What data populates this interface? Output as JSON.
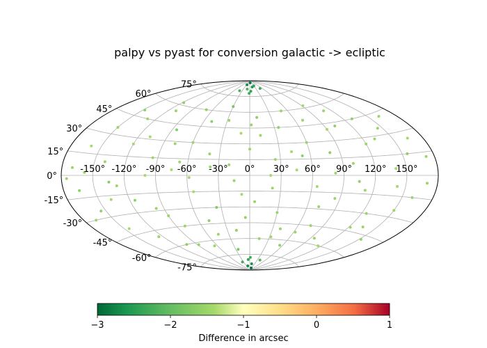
{
  "chart_data": {
    "type": "scatter",
    "projection": "aitoff",
    "title": "palpy vs pyast for conversion galactic -> ecliptic",
    "grid": true,
    "x_ticks": [
      {
        "value": -150,
        "label": "-150°"
      },
      {
        "value": -120,
        "label": "-120°"
      },
      {
        "value": -90,
        "label": "-90°"
      },
      {
        "value": -60,
        "label": "-60°"
      },
      {
        "value": -30,
        "label": "-30°"
      },
      {
        "value": 0,
        "label": "0°"
      },
      {
        "value": 30,
        "label": "30°"
      },
      {
        "value": 60,
        "label": "60°"
      },
      {
        "value": 90,
        "label": "90°"
      },
      {
        "value": 120,
        "label": "120°"
      },
      {
        "value": 150,
        "label": "150°"
      }
    ],
    "y_ticks": [
      {
        "value": 75,
        "label": "75°"
      },
      {
        "value": 60,
        "label": "60°"
      },
      {
        "value": 45,
        "label": "45°"
      },
      {
        "value": 30,
        "label": "30°"
      },
      {
        "value": 15,
        "label": "15°"
      },
      {
        "value": 0,
        "label": "0°"
      },
      {
        "value": -15,
        "label": "-15°"
      },
      {
        "value": -30,
        "label": "-30°"
      },
      {
        "value": -45,
        "label": "-45°"
      },
      {
        "value": -60,
        "label": "-60°"
      },
      {
        "value": -75,
        "label": "-75°"
      }
    ],
    "colorbar": {
      "label": "Difference in arcsec",
      "colormap": "RdYlGn_r",
      "range": [
        -3,
        1
      ],
      "ticks": [
        {
          "value": -3,
          "label": "−3"
        },
        {
          "value": -2,
          "label": "−2"
        },
        {
          "value": -1,
          "label": "−1"
        },
        {
          "value": 0,
          "label": "0"
        },
        {
          "value": 1,
          "label": "1"
        }
      ]
    },
    "points": [
      {
        "lon": -170,
        "lat": 5,
        "v": -1.5
      },
      {
        "lon": -165,
        "lat": -10,
        "v": -1.6
      },
      {
        "lon": -160,
        "lat": 20,
        "v": -1.4
      },
      {
        "lon": -155,
        "lat": -25,
        "v": -1.6
      },
      {
        "lon": -150,
        "lat": 35,
        "v": -1.5
      },
      {
        "lon": -145,
        "lat": -40,
        "v": -1.4
      },
      {
        "lon": -140,
        "lat": 10,
        "v": -1.5
      },
      {
        "lon": -135,
        "lat": -5,
        "v": -1.7
      },
      {
        "lon": -130,
        "lat": 45,
        "v": -1.5
      },
      {
        "lon": -125,
        "lat": -50,
        "v": -1.5
      },
      {
        "lon": -120,
        "lat": 25,
        "v": -1.4
      },
      {
        "lon": -115,
        "lat": -20,
        "v": -1.6
      },
      {
        "lon": -110,
        "lat": 55,
        "v": -1.5
      },
      {
        "lon": -105,
        "lat": -60,
        "v": -1.6
      },
      {
        "lon": -100,
        "lat": 0,
        "v": -1.4
      },
      {
        "lon": -95,
        "lat": 15,
        "v": -1.5
      },
      {
        "lon": -90,
        "lat": -35,
        "v": -1.5
      },
      {
        "lon": -85,
        "lat": 40,
        "v": -1.7
      },
      {
        "lon": -80,
        "lat": -45,
        "v": -1.5
      },
      {
        "lon": -75,
        "lat": 5,
        "v": -1.4
      },
      {
        "lon": -70,
        "lat": 60,
        "v": -1.6
      },
      {
        "lon": -65,
        "lat": -65,
        "v": -1.5
      },
      {
        "lon": -60,
        "lat": 30,
        "v": -1.5
      },
      {
        "lon": -55,
        "lat": -15,
        "v": -1.4
      },
      {
        "lon": -50,
        "lat": 50,
        "v": -1.6
      },
      {
        "lon": -45,
        "lat": -55,
        "v": -1.5
      },
      {
        "lon": -40,
        "lat": 20,
        "v": -1.5
      },
      {
        "lon": -35,
        "lat": -30,
        "v": -1.7
      },
      {
        "lon": -30,
        "lat": 65,
        "v": -1.8
      },
      {
        "lon": -25,
        "lat": -70,
        "v": -1.8
      },
      {
        "lon": -20,
        "lat": 10,
        "v": -1.5
      },
      {
        "lon": -15,
        "lat": -5,
        "v": -1.5
      },
      {
        "lon": -10,
        "lat": 40,
        "v": -1.4
      },
      {
        "lon": -5,
        "lat": -40,
        "v": -1.6
      },
      {
        "lon": 0,
        "lat": 25,
        "v": -1.5
      },
      {
        "lon": 5,
        "lat": -25,
        "v": -1.5
      },
      {
        "lon": 10,
        "lat": 55,
        "v": -1.6
      },
      {
        "lon": 15,
        "lat": -60,
        "v": -1.5
      },
      {
        "lon": 20,
        "lat": 0,
        "v": -1.4
      },
      {
        "lon": 25,
        "lat": 15,
        "v": -1.5
      },
      {
        "lon": 30,
        "lat": -35,
        "v": -1.5
      },
      {
        "lon": 35,
        "lat": 45,
        "v": -1.6
      },
      {
        "lon": 40,
        "lat": -50,
        "v": -1.5
      },
      {
        "lon": 45,
        "lat": 5,
        "v": -1.4
      },
      {
        "lon": 50,
        "lat": 60,
        "v": -1.5
      },
      {
        "lon": 55,
        "lat": -65,
        "v": -1.6
      },
      {
        "lon": 60,
        "lat": 30,
        "v": -1.5
      },
      {
        "lon": 65,
        "lat": -10,
        "v": -1.4
      },
      {
        "lon": 70,
        "lat": 50,
        "v": -1.5
      },
      {
        "lon": 75,
        "lat": -45,
        "v": -1.5
      },
      {
        "lon": 80,
        "lat": 20,
        "v": -1.6
      },
      {
        "lon": 85,
        "lat": -20,
        "v": -1.5
      },
      {
        "lon": 90,
        "lat": 40,
        "v": -1.4
      },
      {
        "lon": 95,
        "lat": -55,
        "v": -1.5
      },
      {
        "lon": 100,
        "lat": 10,
        "v": -1.5
      },
      {
        "lon": 105,
        "lat": -5,
        "v": -1.6
      },
      {
        "lon": 110,
        "lat": 55,
        "v": -1.5
      },
      {
        "lon": 115,
        "lat": -60,
        "v": -1.4
      },
      {
        "lon": 120,
        "lat": 25,
        "v": -1.5
      },
      {
        "lon": 125,
        "lat": -30,
        "v": -1.5
      },
      {
        "lon": 130,
        "lat": 45,
        "v": -1.6
      },
      {
        "lon": 135,
        "lat": -40,
        "v": -1.5
      },
      {
        "lon": 140,
        "lat": 5,
        "v": -1.4
      },
      {
        "lon": 145,
        "lat": 35,
        "v": -1.5
      },
      {
        "lon": 150,
        "lat": -25,
        "v": -1.5
      },
      {
        "lon": 155,
        "lat": 15,
        "v": -1.6
      },
      {
        "lon": 160,
        "lat": -15,
        "v": -1.5
      },
      {
        "lon": 165,
        "lat": 25,
        "v": -1.4
      },
      {
        "lon": 170,
        "lat": -5,
        "v": -1.5
      },
      {
        "lon": -168,
        "lat": -30,
        "v": -1.5
      },
      {
        "lon": -148,
        "lat": 50,
        "v": -1.6
      },
      {
        "lon": -128,
        "lat": -8,
        "v": -1.5
      },
      {
        "lon": -108,
        "lat": 32,
        "v": -1.4
      },
      {
        "lon": -88,
        "lat": -62,
        "v": -1.5
      },
      {
        "lon": -68,
        "lat": 12,
        "v": -1.5
      },
      {
        "lon": -48,
        "lat": -42,
        "v": -1.6
      },
      {
        "lon": -28,
        "lat": 52,
        "v": -1.5
      },
      {
        "lon": -8,
        "lat": -18,
        "v": -1.4
      },
      {
        "lon": 12,
        "lat": 38,
        "v": -1.5
      },
      {
        "lon": 32,
        "lat": -58,
        "v": -1.5
      },
      {
        "lon": 52,
        "lat": 18,
        "v": -1.6
      },
      {
        "lon": 72,
        "lat": -28,
        "v": -1.5
      },
      {
        "lon": 92,
        "lat": 62,
        "v": -1.4
      },
      {
        "lon": 112,
        "lat": -12,
        "v": -1.5
      },
      {
        "lon": 132,
        "lat": 28,
        "v": -1.5
      },
      {
        "lon": 152,
        "lat": -48,
        "v": -1.6
      },
      {
        "lon": 172,
        "lat": 12,
        "v": -1.5
      },
      {
        "lon": -158,
        "lat": 2,
        "v": -1.5
      },
      {
        "lon": -138,
        "lat": -18,
        "v": -1.4
      },
      {
        "lon": -118,
        "lat": 62,
        "v": -1.6
      },
      {
        "lon": -98,
        "lat": -28,
        "v": -1.5
      },
      {
        "lon": -78,
        "lat": 28,
        "v": -1.5
      },
      {
        "lon": -58,
        "lat": -2,
        "v": -1.4
      },
      {
        "lon": -38,
        "lat": 8,
        "v": -1.5
      },
      {
        "lon": -18,
        "lat": -52,
        "v": -1.6
      },
      {
        "lon": 2,
        "lat": 48,
        "v": -1.5
      },
      {
        "lon": 22,
        "lat": -12,
        "v": -1.5
      },
      {
        "lon": 42,
        "lat": 22,
        "v": -1.4
      },
      {
        "lon": 62,
        "lat": -52,
        "v": -1.5
      },
      {
        "lon": 82,
        "lat": 2,
        "v": -1.5
      },
      {
        "lon": 102,
        "lat": 42,
        "v": -1.6
      },
      {
        "lon": 122,
        "lat": -42,
        "v": -1.5
      },
      {
        "lon": 142,
        "lat": -8,
        "v": -1.4
      },
      {
        "lon": 162,
        "lat": 42,
        "v": -1.5
      },
      {
        "lon": -175,
        "lat": -2,
        "v": -1.5
      },
      {
        "lon": -2,
        "lat": 78,
        "v": -2.3
      },
      {
        "lon": 4,
        "lat": 80,
        "v": -2.4
      },
      {
        "lon": -12,
        "lat": 82,
        "v": -2.2
      },
      {
        "lon": 15,
        "lat": 84,
        "v": -2.6
      },
      {
        "lon": -25,
        "lat": 86,
        "v": -2.7
      },
      {
        "lon": 30,
        "lat": 85,
        "v": -2.4
      },
      {
        "lon": 6,
        "lat": 88,
        "v": -2.9
      },
      {
        "lon": -40,
        "lat": 80,
        "v": -2.2
      },
      {
        "lon": 50,
        "lat": 82,
        "v": -2.3
      },
      {
        "lon": 2,
        "lat": -78,
        "v": -2.3
      },
      {
        "lon": -6,
        "lat": -80,
        "v": -2.4
      },
      {
        "lon": 12,
        "lat": -84,
        "v": -2.6
      },
      {
        "lon": -18,
        "lat": -86,
        "v": -2.7
      },
      {
        "lon": 25,
        "lat": -88,
        "v": -2.9
      },
      {
        "lon": -35,
        "lat": -82,
        "v": -2.3
      },
      {
        "lon": 40,
        "lat": -80,
        "v": -2.2
      }
    ]
  }
}
